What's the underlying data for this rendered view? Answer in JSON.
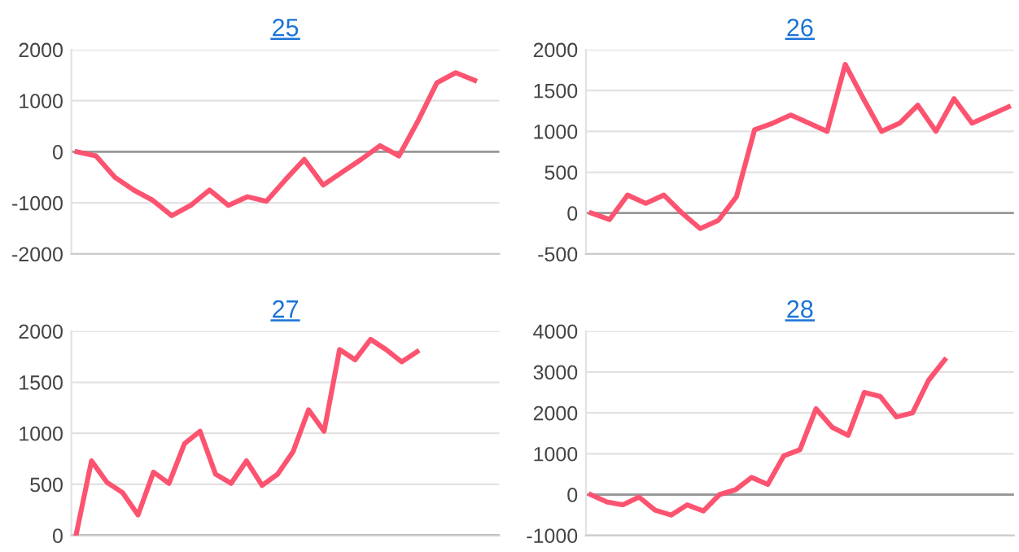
{
  "chart_data": [
    {
      "type": "line",
      "title": "25",
      "categories": [
        null,
        null,
        null,
        null,
        null,
        null,
        null,
        null,
        null,
        null,
        null,
        null,
        null,
        null,
        null,
        null,
        null,
        null,
        null,
        null,
        null,
        null,
        null
      ],
      "series": [
        {
          "color": "#fc5470",
          "values": [
            0,
            -80,
            -500,
            -750,
            -950,
            -1250,
            -1050,
            -750,
            -1050,
            -880,
            -970,
            -550,
            -150,
            -650,
            -400,
            -150,
            120,
            -80,
            600,
            1350,
            1550,
            1400,
            null
          ]
        }
      ],
      "ylim": [
        -2000,
        2000
      ],
      "yticks": [
        -2000,
        -1000,
        0,
        1000,
        2000
      ],
      "grid": "y",
      "ref_lines": [
        {
          "axis": "y",
          "value": 0,
          "color": "#999999"
        }
      ]
    },
    {
      "type": "line",
      "title": "26",
      "categories": [
        null,
        null,
        null,
        null,
        null,
        null,
        null,
        null,
        null,
        null,
        null,
        null,
        null,
        null,
        null,
        null,
        null,
        null,
        null,
        null,
        null,
        null,
        null,
        null
      ],
      "series": [
        {
          "color": "#fc5470",
          "values": [
            0,
            -80,
            220,
            120,
            220,
            0,
            -190,
            -90,
            200,
            1020,
            1100,
            1200,
            1100,
            1000,
            1820,
            1400,
            1000,
            1100,
            1320,
            1000,
            1400,
            1100,
            1200,
            1300
          ]
        }
      ],
      "ylim": [
        -500,
        2000
      ],
      "yticks": [
        -500,
        0,
        500,
        1000,
        1500,
        2000
      ],
      "grid": "y",
      "ref_lines": [
        {
          "axis": "y",
          "value": 0,
          "color": "#999999"
        }
      ]
    },
    {
      "type": "line",
      "title": "27",
      "categories": [
        null,
        null,
        null,
        null,
        null,
        null,
        null,
        null,
        null,
        null,
        null,
        null,
        null,
        null,
        null,
        null,
        null,
        null,
        null,
        null,
        null,
        null,
        null,
        null,
        null,
        null,
        null,
        null
      ],
      "series": [
        {
          "color": "#fc5470",
          "values": [
            0,
            730,
            520,
            420,
            200,
            620,
            510,
            900,
            1020,
            600,
            510,
            730,
            490,
            600,
            820,
            1230,
            1020,
            1820,
            1720,
            1920,
            1820,
            1700,
            1800,
            null,
            null,
            null,
            null,
            null
          ]
        }
      ],
      "ylim": [
        0,
        2000
      ],
      "yticks": [
        0,
        500,
        1000,
        1500,
        2000
      ],
      "grid": "y",
      "ref_lines": [
        {
          "axis": "y",
          "value": 0,
          "color": "#999999"
        }
      ]
    },
    {
      "type": "line",
      "title": "28",
      "categories": [
        null,
        null,
        null,
        null,
        null,
        null,
        null,
        null,
        null,
        null,
        null,
        null,
        null,
        null,
        null,
        null,
        null,
        null,
        null,
        null,
        null,
        null,
        null,
        null,
        null,
        null,
        null
      ],
      "series": [
        {
          "color": "#fc5470",
          "values": [
            0,
            -180,
            -250,
            -60,
            -380,
            -500,
            -250,
            -400,
            0,
            120,
            420,
            250,
            950,
            1100,
            2100,
            1650,
            1450,
            2500,
            2400,
            1900,
            2000,
            2800,
            3300,
            null,
            null,
            null,
            null
          ]
        }
      ],
      "ylim": [
        -1000,
        4000
      ],
      "yticks": [
        -1000,
        0,
        1000,
        2000,
        3000,
        4000
      ],
      "grid": "y",
      "ref_lines": [
        {
          "axis": "y",
          "value": 0,
          "color": "#999999"
        }
      ]
    }
  ]
}
